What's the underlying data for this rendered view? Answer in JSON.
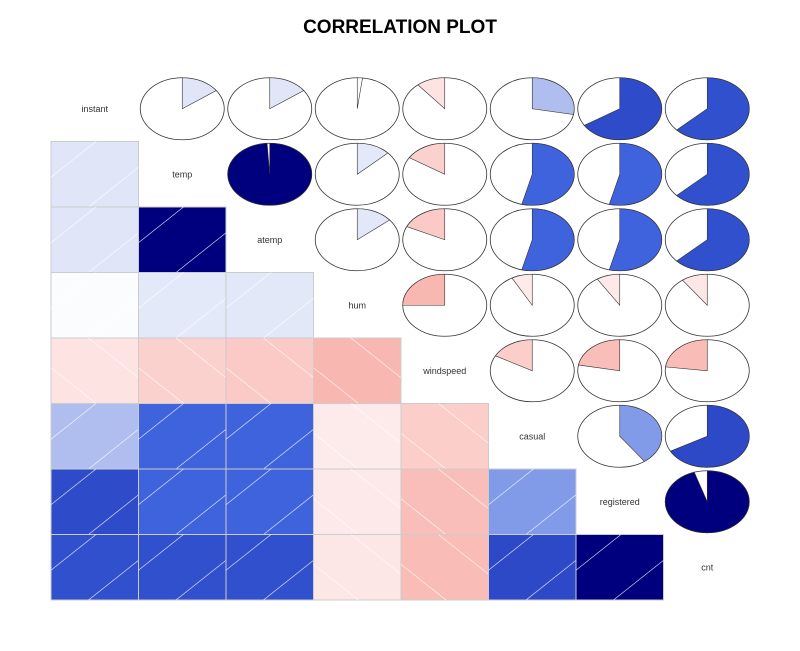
{
  "chart_data": {
    "type": "heatmap",
    "title": "CORRELATION PLOT",
    "lower_panel": "shade",
    "upper_panel": "pie",
    "variables": [
      "instant",
      "temp",
      "atemp",
      "hum",
      "windspeed",
      "casual",
      "registered",
      "cnt"
    ],
    "correlations": [
      [
        1.0,
        0.15,
        0.15,
        0.02,
        -0.11,
        0.28,
        0.66,
        0.63
      ],
      [
        0.15,
        1.0,
        0.99,
        0.13,
        -0.16,
        0.54,
        0.54,
        0.63
      ],
      [
        0.15,
        0.99,
        1.0,
        0.14,
        -0.18,
        0.54,
        0.54,
        0.63
      ],
      [
        0.02,
        0.13,
        0.14,
        1.0,
        -0.25,
        -0.08,
        -0.09,
        -0.1
      ],
      [
        -0.11,
        -0.16,
        -0.18,
        -0.25,
        1.0,
        -0.17,
        -0.22,
        -0.23
      ],
      [
        0.28,
        0.54,
        0.54,
        -0.08,
        -0.17,
        1.0,
        0.4,
        0.67
      ],
      [
        0.66,
        0.54,
        0.54,
        -0.09,
        -0.22,
        0.4,
        1.0,
        0.95
      ],
      [
        0.63,
        0.63,
        0.63,
        -0.1,
        -0.23,
        0.67,
        0.95,
        1.0
      ]
    ],
    "colors": {
      "strong_positive": "#00007F",
      "positive": "#2A44C2",
      "moderate_positive": "#3A5EDC",
      "weak_positive": "#A8B8EE",
      "neutral": "#FFFFFF",
      "weak_negative": "#FDE6E6",
      "moderate_negative": "#FAC3BE",
      "grid_line": "#CCCCCC"
    }
  }
}
